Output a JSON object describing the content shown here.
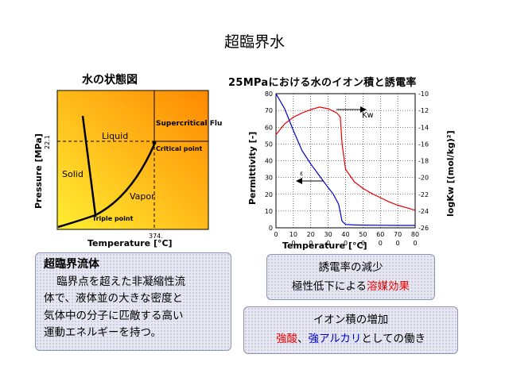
{
  "title": "超臨界水",
  "phase": {
    "subtitle": "水の状態図",
    "ylabel": "Pressure [MPa]",
    "xlabel": "Temperature [°C]",
    "p_tick": "22.1",
    "t_tick": "374.",
    "regions": {
      "liquid": "Liquid",
      "solid": "Solid",
      "vapor": "Vapor",
      "supercritical": "Supercritical Fluid",
      "critical": "Critical point",
      "triple": "Triple point"
    },
    "colors": {
      "low": "#ffee33",
      "high": "#ff8800"
    }
  },
  "chart_data": {
    "type": "line",
    "title": "25MPaにおける水のイオン積と誘電率",
    "xlabel": "Temperature [°C]",
    "ylabel_left": "Permittivity [-]",
    "ylabel_right": "logKw [(mol/kg)²]",
    "xlim": [
      0,
      800
    ],
    "ylim_left": [
      0,
      80
    ],
    "ylim_right": [
      -26,
      -10
    ],
    "x_ticks": [
      "0",
      "100",
      "200",
      "300",
      "400",
      "500",
      "600",
      "700",
      "800"
    ],
    "y_ticks_left": [
      "0",
      "10",
      "20",
      "30",
      "40",
      "50",
      "60",
      "70",
      "80"
    ],
    "y_ticks_right": [
      "-10",
      "-12",
      "-14",
      "-16",
      "-18",
      "-20",
      "-22",
      "-24",
      "-26"
    ],
    "series": [
      {
        "name": "Kw",
        "axis": "right",
        "color": "#ee0000",
        "x": [
          0,
          50,
          100,
          150,
          200,
          250,
          300,
          350,
          370,
          380,
          400,
          450,
          500,
          550,
          600,
          650,
          700,
          750,
          800
        ],
        "y": [
          -14.9,
          -13.6,
          -12.8,
          -12.3,
          -11.9,
          -11.6,
          -11.8,
          -12.3,
          -12.8,
          -16,
          -19,
          -20.5,
          -21.3,
          -21.9,
          -22.4,
          -22.9,
          -23.3,
          -23.6,
          -23.9
        ]
      },
      {
        "name": "Permittivity",
        "axis": "left",
        "color": "#0000cc",
        "x": [
          0,
          50,
          100,
          150,
          200,
          250,
          300,
          330,
          360,
          380,
          400,
          450,
          500,
          600,
          700,
          800
        ],
        "y": [
          87,
          71,
          58,
          46,
          38,
          31,
          24,
          20,
          14,
          4,
          2,
          1.7,
          1.6,
          1.5,
          1.4,
          1.4
        ]
      }
    ],
    "annotations": {
      "kw": "Kw",
      "eps": "ε"
    }
  },
  "box1": {
    "heading": "超臨界流体",
    "lines": [
      "臨界点を超えた非凝縮性流",
      "体で、液体並の大きな密度と",
      "気体中の分子に匹敵する高い",
      "運動エネルギーを持つ。"
    ]
  },
  "box2": {
    "line1": "誘電率の減少",
    "line2_pre": "極性低下による",
    "line2_red": "溶媒効果"
  },
  "box3": {
    "line1": "イオン積の増加",
    "red": "強酸",
    "sep": "、",
    "blue": "強アルカリ",
    "post": "としての働き"
  }
}
